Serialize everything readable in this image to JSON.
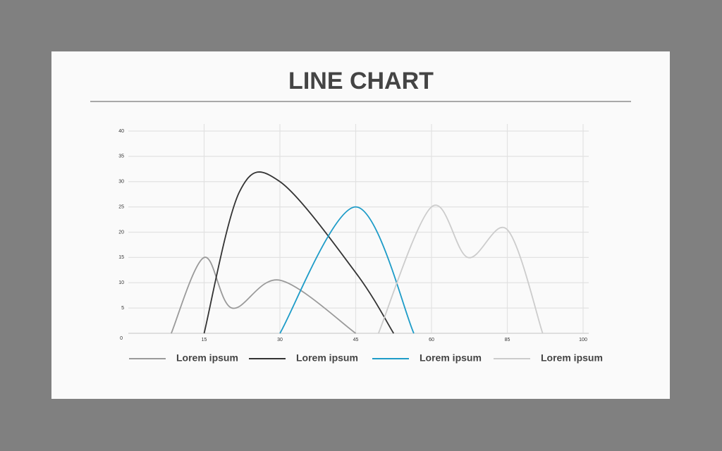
{
  "chart_data": {
    "type": "line",
    "title": "LINE CHART",
    "xlim": [
      0,
      100
    ],
    "xticks": [
      0,
      15,
      30,
      45,
      60,
      85,
      100
    ],
    "ylim": [
      0,
      40
    ],
    "yticks": [
      0,
      5,
      10,
      15,
      20,
      25,
      30,
      35,
      40
    ],
    "grid": true,
    "legend": "bottom",
    "series": [
      {
        "name": "Lorem ipsum",
        "color": "#9a9a9a",
        "x": [
          8.5,
          15,
          20.5,
          30,
          45
        ],
        "values": [
          0,
          15,
          5,
          10.5,
          0
        ]
      },
      {
        "name": "Lorem ipsum",
        "color": "#333333",
        "x": [
          15,
          22,
          30,
          45,
          52.5
        ],
        "values": [
          0,
          28,
          30,
          12,
          0
        ]
      },
      {
        "name": "Lorem ipsum",
        "color": "#1e9cc8",
        "x": [
          30,
          45,
          56.5
        ],
        "values": [
          0,
          25,
          0
        ]
      },
      {
        "name": "Lorem ipsum",
        "color": "#cccccc",
        "x": [
          49.5,
          60,
          72,
          85,
          92
        ],
        "values": [
          0,
          25,
          15,
          20.5,
          0
        ]
      }
    ]
  }
}
